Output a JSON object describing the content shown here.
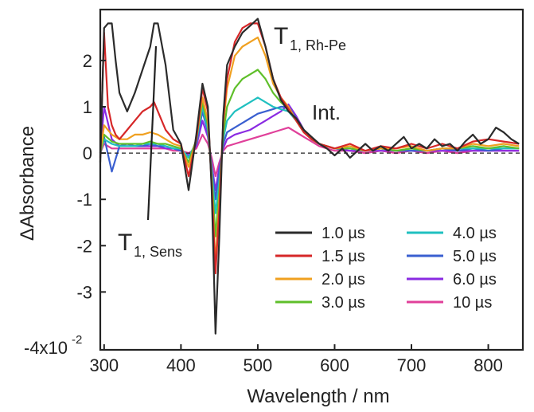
{
  "chart_data": {
    "type": "line",
    "xlabel": "Wavelength  / nm",
    "ylabel": "ΔAbsorbance",
    "xlim": [
      295,
      845
    ],
    "ylim": [
      -4.25,
      3.1
    ],
    "xticks": [
      300,
      400,
      500,
      600,
      700,
      800
    ],
    "yticks": [
      2,
      1,
      0,
      -1,
      -2,
      -3
    ],
    "ytick_labels": [
      "2",
      "1",
      "0",
      "-1",
      "-2",
      "-3"
    ],
    "y_scale_base": "-4x10",
    "y_scale_exp": "-2",
    "zero_line": "dashed",
    "legend_placement": "bottom-right",
    "series": [
      {
        "name": "1.0 µs",
        "color": "#2b2b2b",
        "x": [
          295,
          300,
          305,
          310,
          315,
          320,
          330,
          340,
          350,
          360,
          365,
          370,
          380,
          390,
          400,
          410,
          420,
          428,
          435,
          440,
          445,
          450,
          455,
          460,
          470,
          480,
          490,
          500,
          510,
          520,
          530,
          540,
          550,
          560,
          570,
          580,
          590,
          600,
          610,
          620,
          630,
          640,
          650,
          660,
          670,
          680,
          690,
          700,
          710,
          720,
          730,
          740,
          750,
          760,
          770,
          780,
          790,
          800,
          810,
          820,
          830,
          840
        ],
        "y": [
          -0.2,
          2.7,
          2.8,
          2.8,
          2.0,
          1.3,
          0.9,
          1.3,
          1.8,
          2.3,
          2.8,
          2.8,
          1.9,
          0.5,
          0.2,
          -0.8,
          0.4,
          1.5,
          1.0,
          -0.8,
          -3.9,
          -1.8,
          0.8,
          1.9,
          2.3,
          2.6,
          2.75,
          2.9,
          2.3,
          1.6,
          1.15,
          0.9,
          0.75,
          0.5,
          0.35,
          0.2,
          0.1,
          -0.05,
          0.1,
          -0.1,
          0.05,
          0.2,
          0.05,
          0.15,
          0.05,
          0.2,
          0.35,
          0.1,
          0.2,
          0.1,
          0.3,
          0.15,
          0.2,
          0.05,
          0.25,
          0.4,
          0.2,
          0.3,
          0.55,
          0.45,
          0.3,
          0.2
        ]
      },
      {
        "name": "1.5 µs",
        "color": "#d62728",
        "x": [
          295,
          300,
          305,
          310,
          315,
          320,
          330,
          340,
          350,
          360,
          365,
          370,
          380,
          390,
          400,
          410,
          420,
          428,
          435,
          440,
          445,
          450,
          455,
          460,
          470,
          480,
          490,
          500,
          510,
          520,
          530,
          540,
          550,
          560,
          570,
          580,
          590,
          600,
          620,
          640,
          660,
          680,
          700,
          720,
          740,
          760,
          780,
          800,
          820,
          840
        ],
        "y": [
          -0.1,
          2.6,
          1.0,
          0.6,
          0.4,
          0.3,
          0.5,
          0.7,
          0.9,
          1.0,
          1.1,
          0.9,
          0.5,
          0.3,
          0.2,
          -0.5,
          0.3,
          1.4,
          0.9,
          -0.7,
          -2.6,
          -1.2,
          0.7,
          1.6,
          2.4,
          2.7,
          2.8,
          2.8,
          2.3,
          1.6,
          1.2,
          0.95,
          0.7,
          0.45,
          0.3,
          0.2,
          0.15,
          0.1,
          0.2,
          0.05,
          0.15,
          0.1,
          0.2,
          0.1,
          0.2,
          0.1,
          0.25,
          0.3,
          0.25,
          0.2
        ]
      },
      {
        "name": "2.0 µs",
        "color": "#f0a020",
        "x": [
          295,
          300,
          310,
          320,
          330,
          340,
          350,
          360,
          370,
          380,
          390,
          400,
          410,
          420,
          428,
          435,
          440,
          445,
          450,
          455,
          460,
          470,
          480,
          490,
          500,
          510,
          520,
          530,
          540,
          550,
          560,
          570,
          580,
          590,
          600,
          620,
          640,
          660,
          680,
          700,
          720,
          740,
          760,
          780,
          800,
          820,
          840
        ],
        "y": [
          0.0,
          0.6,
          0.4,
          0.3,
          0.3,
          0.4,
          0.4,
          0.45,
          0.4,
          0.3,
          0.2,
          0.15,
          -0.3,
          0.3,
          1.2,
          0.7,
          -0.6,
          -2.4,
          -1.0,
          0.6,
          1.4,
          2.1,
          2.3,
          2.4,
          2.5,
          2.1,
          1.5,
          1.2,
          1.0,
          0.7,
          0.45,
          0.3,
          0.2,
          0.15,
          0.1,
          0.15,
          0.05,
          0.1,
          0.1,
          0.15,
          0.05,
          0.1,
          0.1,
          0.2,
          0.15,
          0.2,
          0.15
        ]
      },
      {
        "name": "3.0 µs",
        "color": "#5fbf2a",
        "x": [
          295,
          300,
          310,
          320,
          330,
          340,
          350,
          360,
          370,
          380,
          390,
          400,
          410,
          420,
          428,
          435,
          440,
          445,
          450,
          455,
          460,
          470,
          480,
          490,
          500,
          510,
          520,
          530,
          540,
          550,
          560,
          570,
          580,
          590,
          600,
          620,
          640,
          660,
          680,
          700,
          720,
          740,
          760,
          780,
          800,
          820,
          840
        ],
        "y": [
          0.0,
          0.4,
          0.25,
          0.2,
          0.2,
          0.2,
          0.2,
          0.25,
          0.2,
          0.2,
          0.15,
          0.1,
          -0.2,
          0.3,
          1.1,
          0.6,
          -0.5,
          -1.8,
          -0.8,
          0.4,
          1.0,
          1.4,
          1.6,
          1.7,
          1.8,
          1.6,
          1.3,
          1.1,
          0.95,
          0.7,
          0.45,
          0.3,
          0.2,
          0.15,
          0.1,
          0.1,
          0.05,
          0.1,
          0.05,
          0.1,
          0.05,
          0.1,
          0.1,
          0.15,
          0.1,
          0.15,
          0.1
        ]
      },
      {
        "name": "4.0 µs",
        "color": "#20c0c0",
        "x": [
          295,
          300,
          310,
          320,
          330,
          340,
          350,
          360,
          370,
          380,
          390,
          400,
          410,
          420,
          428,
          435,
          440,
          445,
          450,
          455,
          460,
          470,
          480,
          490,
          500,
          510,
          520,
          530,
          540,
          550,
          560,
          570,
          580,
          590,
          600,
          620,
          640,
          660,
          680,
          700,
          720,
          740,
          760,
          780,
          800,
          820,
          840
        ],
        "y": [
          0.0,
          0.3,
          0.2,
          0.15,
          0.15,
          0.15,
          0.2,
          0.2,
          0.2,
          0.15,
          0.1,
          0.1,
          -0.1,
          0.25,
          1.0,
          0.5,
          -0.4,
          -1.3,
          -0.6,
          0.3,
          0.7,
          0.9,
          1.0,
          1.1,
          1.2,
          1.1,
          1.0,
          0.95,
          0.9,
          0.7,
          0.45,
          0.3,
          0.2,
          0.15,
          0.1,
          0.1,
          0.05,
          0.1,
          0.05,
          0.1,
          0.05,
          0.1,
          0.1,
          0.1,
          0.1,
          0.1,
          0.1
        ]
      },
      {
        "name": "5.0 µs",
        "color": "#3a5fd0",
        "x": [
          295,
          300,
          310,
          320,
          330,
          340,
          350,
          360,
          370,
          380,
          390,
          400,
          410,
          420,
          428,
          435,
          440,
          445,
          450,
          455,
          460,
          470,
          480,
          490,
          500,
          510,
          520,
          530,
          540,
          550,
          560,
          570,
          580,
          590,
          600,
          620,
          640,
          660,
          680,
          700,
          720,
          740,
          760,
          780,
          800,
          820,
          840
        ],
        "y": [
          0.0,
          0.35,
          -0.4,
          0.15,
          0.2,
          0.15,
          0.15,
          0.2,
          0.15,
          0.15,
          0.1,
          0.05,
          -0.1,
          0.2,
          0.9,
          0.45,
          -0.3,
          -1.0,
          -0.4,
          0.2,
          0.45,
          0.55,
          0.65,
          0.75,
          0.85,
          0.9,
          0.95,
          1.0,
          1.0,
          0.75,
          0.5,
          0.3,
          0.2,
          0.15,
          0.1,
          0.1,
          0.05,
          0.1,
          0.05,
          0.05,
          0.05,
          0.1,
          0.05,
          0.1,
          0.05,
          0.1,
          0.1
        ]
      },
      {
        "name": "6.0 µs",
        "color": "#8a2be2",
        "x": [
          295,
          300,
          310,
          320,
          330,
          340,
          350,
          360,
          370,
          380,
          390,
          400,
          410,
          420,
          428,
          435,
          440,
          445,
          450,
          455,
          460,
          470,
          480,
          490,
          500,
          510,
          520,
          530,
          540,
          550,
          560,
          570,
          580,
          590,
          600,
          620,
          640,
          660,
          680,
          700,
          720,
          740,
          760,
          780,
          800,
          820,
          840
        ],
        "y": [
          0.0,
          1.0,
          0.3,
          0.15,
          0.15,
          0.15,
          0.15,
          0.15,
          0.15,
          0.1,
          0.1,
          0.05,
          -0.05,
          0.15,
          0.7,
          0.35,
          -0.25,
          -0.8,
          -0.3,
          0.1,
          0.3,
          0.4,
          0.45,
          0.5,
          0.6,
          0.7,
          0.8,
          0.9,
          1.05,
          0.8,
          0.5,
          0.3,
          0.2,
          0.15,
          0.1,
          0.05,
          0.05,
          0.05,
          0.05,
          0.05,
          0.05,
          0.05,
          0.05,
          0.05,
          0.05,
          0.05,
          0.05
        ]
      },
      {
        "name": "10 µs",
        "color": "#e0409a",
        "x": [
          295,
          300,
          310,
          320,
          330,
          340,
          350,
          360,
          370,
          380,
          390,
          400,
          410,
          420,
          428,
          435,
          440,
          445,
          450,
          455,
          460,
          470,
          480,
          490,
          500,
          510,
          520,
          530,
          540,
          550,
          560,
          570,
          580,
          590,
          600,
          620,
          640,
          660,
          680,
          700,
          720,
          740,
          760,
          780,
          800,
          820,
          840
        ],
        "y": [
          0.0,
          0.2,
          0.1,
          0.1,
          0.1,
          0.1,
          0.1,
          0.1,
          0.1,
          0.1,
          0.05,
          0.05,
          0.0,
          0.1,
          0.4,
          0.2,
          -0.1,
          -0.5,
          -0.2,
          0.05,
          0.15,
          0.2,
          0.25,
          0.3,
          0.35,
          0.4,
          0.45,
          0.5,
          0.55,
          0.45,
          0.35,
          0.25,
          0.15,
          0.1,
          0.05,
          0.05,
          0.0,
          0.05,
          0.0,
          0.05,
          0.0,
          0.05,
          0.0,
          0.05,
          0.05,
          0.05,
          0.05
        ]
      }
    ],
    "annotations": {
      "t1_rhpe": {
        "main": "T",
        "sub": "1, Rh-Pe"
      },
      "int": "Int.",
      "t1_sens": {
        "main": "T",
        "sub": "1, Sens"
      }
    }
  }
}
